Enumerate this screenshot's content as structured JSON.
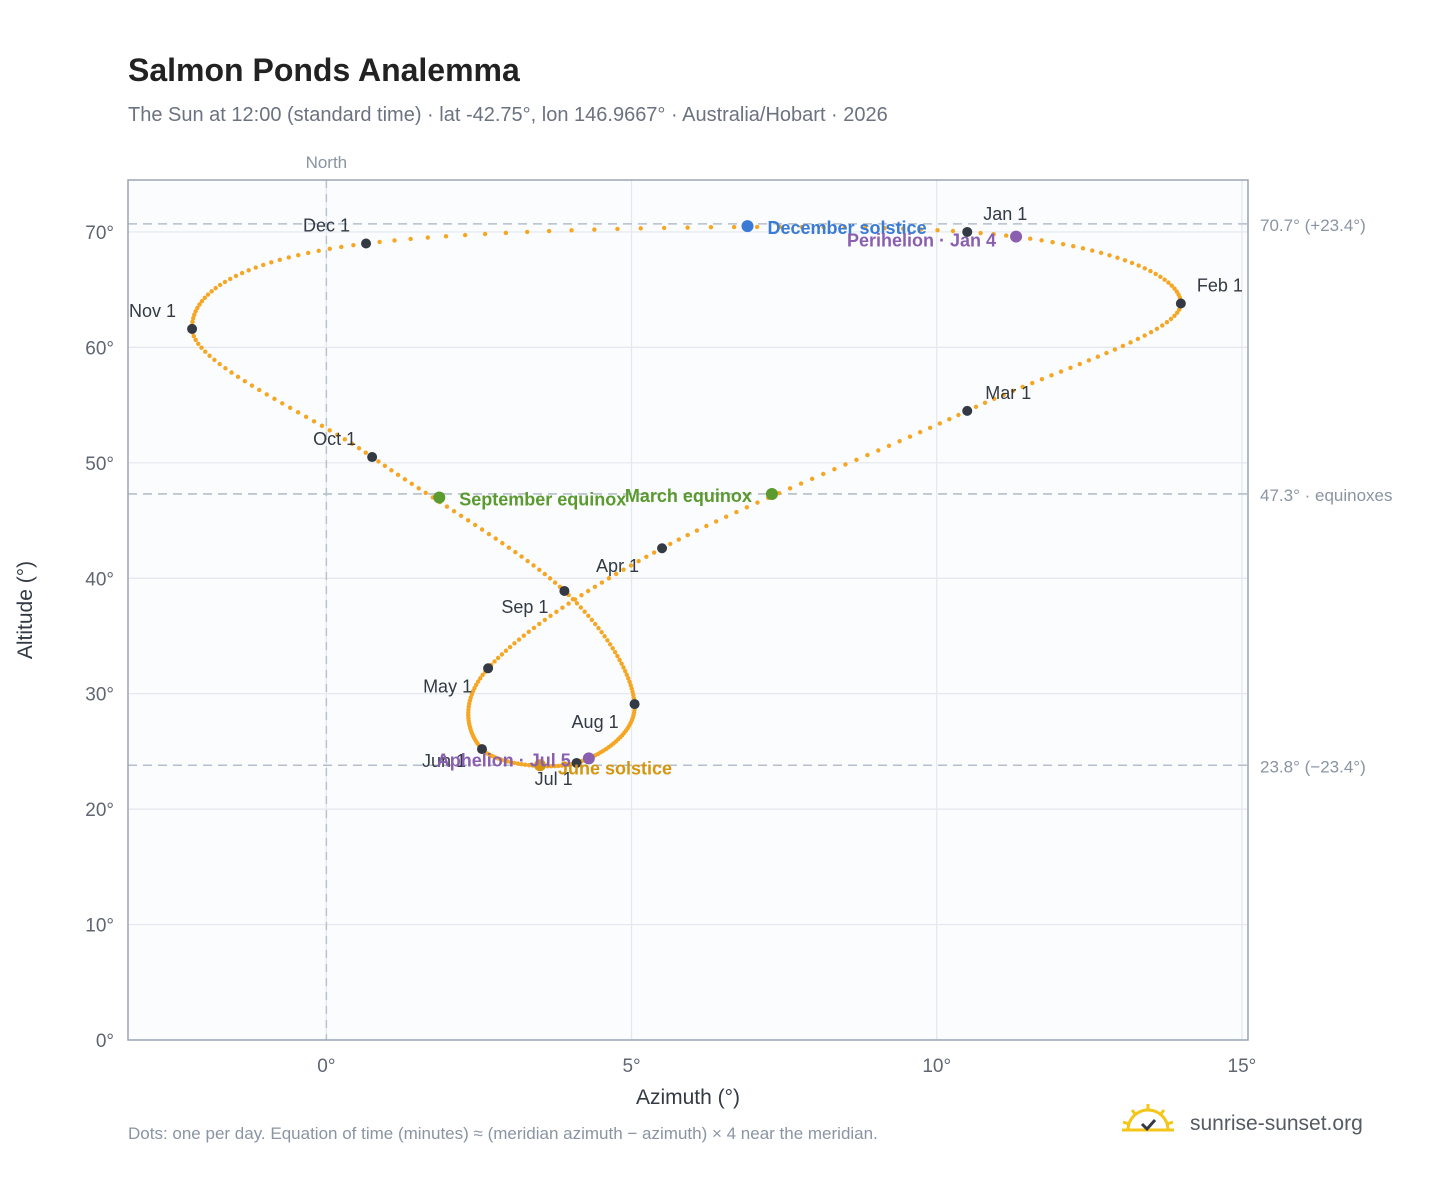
{
  "header": {
    "title": "Salmon Ponds Analemma",
    "subtitle": "The Sun at 12:00 (standard time) · lat -42.75°, lon 146.9667° · Australia/Hobart · 2026"
  },
  "footer": {
    "note": "Dots: one per day. Equation of time (minutes) ≈ (meridian azimuth − azimuth) × 4 near the meridian.",
    "brand": "sunrise-sunset.org",
    "brand_icon": "sun-check-icon"
  },
  "chart_data": {
    "type": "scatter",
    "xlabel": "Azimuth (°)",
    "ylabel": "Altitude (°)",
    "xlim": [
      -3.25,
      15.1
    ],
    "ylim": [
      0,
      74.5
    ],
    "xticks": [
      0,
      5,
      10,
      15
    ],
    "yticks": [
      0,
      10,
      20,
      30,
      40,
      50,
      60,
      70
    ],
    "tick_suffix": "°",
    "grid": true,
    "north_label": "North",
    "north_x": 0,
    "colors": {
      "path": "#f5a623",
      "month": "#333a44",
      "december": "#3a7bd5",
      "june": "#d4960f",
      "equinox": "#5a9a2e",
      "aphelion": "#8a5fb0",
      "reference": "#b5bfcc"
    },
    "reference_lines": [
      {
        "y": 70.7,
        "label": "70.7° (+23.4°)"
      },
      {
        "y": 47.3,
        "label": "47.3° · equinoxes"
      },
      {
        "y": 23.8,
        "label": "23.8° (−23.4°)"
      }
    ],
    "month_markers": [
      {
        "label": "Jan 1",
        "x": 10.5,
        "y": 70.0
      },
      {
        "label": "Feb 1",
        "x": 14.0,
        "y": 63.8
      },
      {
        "label": "Mar 1",
        "x": 10.5,
        "y": 54.5
      },
      {
        "label": "Apr 1",
        "x": 5.5,
        "y": 42.6
      },
      {
        "label": "May 1",
        "x": 2.65,
        "y": 32.2
      },
      {
        "label": "Jun 1",
        "x": 2.55,
        "y": 25.2
      },
      {
        "label": "Jul 1",
        "x": 4.1,
        "y": 24.0
      },
      {
        "label": "Aug 1",
        "x": 5.05,
        "y": 29.1
      },
      {
        "label": "Sep 1",
        "x": 3.9,
        "y": 38.9
      },
      {
        "label": "Oct 1",
        "x": 0.75,
        "y": 50.5
      },
      {
        "label": "Nov 1",
        "x": -2.2,
        "y": 61.6
      },
      {
        "label": "Dec 1",
        "x": 0.65,
        "y": 69.0
      }
    ],
    "events": [
      {
        "label": "December solstice",
        "x": 6.9,
        "y": 70.5,
        "kind": "december"
      },
      {
        "label": "Perihelion · Jan 4",
        "x": 11.3,
        "y": 69.6,
        "kind": "aphelion"
      },
      {
        "label": "March equinox",
        "x": 7.3,
        "y": 47.3,
        "kind": "equinox"
      },
      {
        "label": "September equinox",
        "x": 1.85,
        "y": 47.0,
        "kind": "equinox"
      },
      {
        "label": "June solstice",
        "x": 3.5,
        "y": 23.8,
        "kind": "june"
      },
      {
        "label": "Aphelion · Jul 5",
        "x": 4.3,
        "y": 24.4,
        "kind": "aphelion"
      }
    ]
  }
}
